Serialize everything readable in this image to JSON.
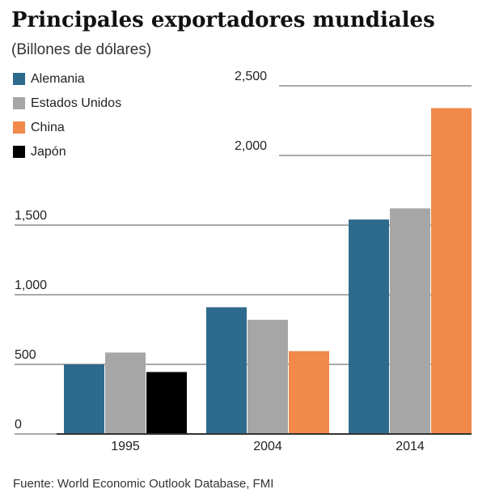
{
  "chart_data": {
    "type": "bar",
    "title": "Principales exportadores mundiales",
    "subtitle": "(Billones de dólares)",
    "source": "Fuente: World Economic Outlook Database, FMI",
    "categories": [
      "1995",
      "2004",
      "2014"
    ],
    "series": [
      {
        "name": "Alemania",
        "color": "#2e6a8e",
        "values": [
          500,
          910,
          1540
        ]
      },
      {
        "name": "Estados Unidos",
        "color": "#a6a6a6",
        "values": [
          585,
          820,
          1620
        ]
      },
      {
        "name": "China",
        "color": "#f0894a",
        "values": [
          null,
          595,
          2340
        ]
      },
      {
        "name": "Japón",
        "color": "#000000",
        "values": [
          445,
          null,
          null
        ]
      }
    ],
    "ylim": [
      0,
      2500
    ],
    "yticks": [
      0,
      500,
      {
        "value": 1000,
        "label": "1,000"
      },
      {
        "value": 1500,
        "label": "1,500"
      },
      {
        "value": 2000,
        "label": "2,000"
      },
      {
        "value": 2500,
        "label": "2,500"
      }
    ],
    "grid": true
  }
}
